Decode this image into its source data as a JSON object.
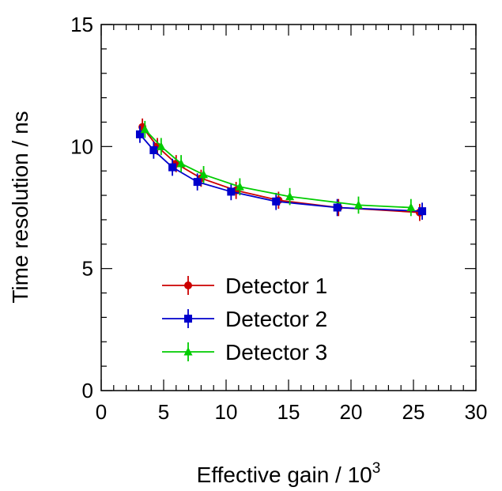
{
  "chart_data": {
    "type": "line",
    "xlabel": "Effective gain / 10",
    "xlabel_superscript": "3",
    "ylabel": "Time resolution / ns",
    "xlim": [
      0,
      30
    ],
    "ylim": [
      0,
      15
    ],
    "x_ticks": [
      "0",
      "5",
      "10",
      "15",
      "20",
      "25",
      "30"
    ],
    "y_ticks": [
      "0",
      "5",
      "10",
      "15"
    ],
    "legend_position": "bottom-left",
    "series": [
      {
        "name": "Detector 1",
        "color": "#cc0000",
        "marker": "circle",
        "x": [
          3.3,
          4.5,
          6.0,
          8.0,
          10.8,
          14.2,
          19.0,
          25.5
        ],
        "y": [
          10.8,
          10.0,
          9.3,
          8.7,
          8.2,
          7.8,
          7.5,
          7.3
        ],
        "err": [
          0.35,
          0.35,
          0.35,
          0.35,
          0.35,
          0.35,
          0.35,
          0.35
        ]
      },
      {
        "name": "Detector 2",
        "color": "#0000cc",
        "marker": "square",
        "x": [
          3.1,
          4.2,
          5.7,
          7.7,
          10.4,
          14.0,
          18.9,
          25.7
        ],
        "y": [
          10.5,
          9.85,
          9.15,
          8.55,
          8.15,
          7.75,
          7.5,
          7.35
        ],
        "err": [
          0.35,
          0.35,
          0.35,
          0.35,
          0.35,
          0.35,
          0.35,
          0.35
        ]
      },
      {
        "name": "Detector 3",
        "color": "#00cc00",
        "marker": "triangle",
        "x": [
          3.5,
          4.8,
          6.4,
          8.2,
          11.1,
          15.1,
          20.6,
          24.8
        ],
        "y": [
          10.7,
          10.0,
          9.3,
          8.85,
          8.35,
          7.95,
          7.6,
          7.5
        ],
        "err": [
          0.35,
          0.35,
          0.35,
          0.35,
          0.35,
          0.35,
          0.35,
          0.35
        ]
      }
    ]
  }
}
